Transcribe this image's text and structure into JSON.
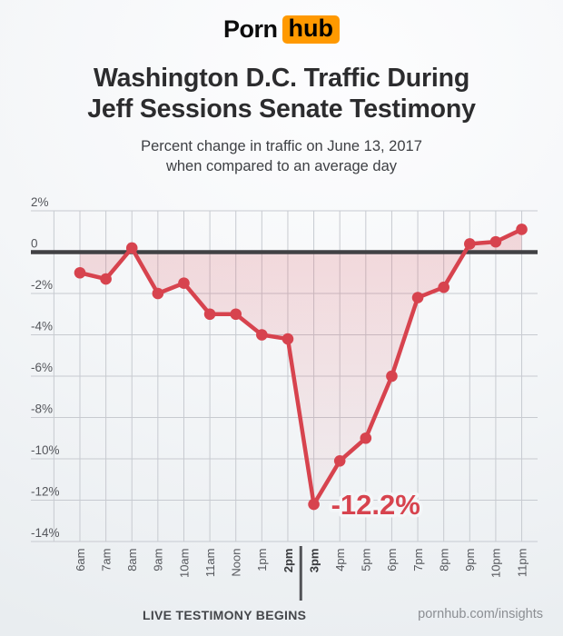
{
  "brand": {
    "logo_part1": "Porn",
    "logo_part2": "hub",
    "orange": "#ff9900"
  },
  "header": {
    "title_line1": "Washington D.C. Traffic During",
    "title_line2": "Jeff Sessions Senate Testimony",
    "subtitle_line1": "Percent change in traffic on June 13, 2017",
    "subtitle_line2": "when compared to an average day"
  },
  "chart_data": {
    "type": "line",
    "title": "Washington D.C. Traffic During Jeff Sessions Senate Testimony",
    "x_labels": [
      "6am",
      "7am",
      "8am",
      "9am",
      "10am",
      "11am",
      "Noon",
      "1pm",
      "2pm",
      "3pm",
      "4pm",
      "5pm",
      "6pm",
      "7pm",
      "8pm",
      "9pm",
      "10pm",
      "11pm"
    ],
    "values": [
      -1.0,
      -1.3,
      0.2,
      -2.0,
      -1.5,
      -3.0,
      -3.0,
      -4.0,
      -4.2,
      -12.2,
      -10.1,
      -9.0,
      -6.0,
      -2.2,
      -1.7,
      0.4,
      0.5,
      1.1
    ],
    "bold_x_labels": [
      "2pm",
      "3pm"
    ],
    "y_ticks": [
      {
        "label": "2%",
        "value": 2
      },
      {
        "label": "0",
        "value": 0
      },
      {
        "label": "-2%",
        "value": -2
      },
      {
        "label": "-4%",
        "value": -4
      },
      {
        "label": "-6%",
        "value": -6
      },
      {
        "label": "-8%",
        "value": -8
      },
      {
        "label": "-10%",
        "value": -10
      },
      {
        "label": "-12%",
        "value": -12
      },
      {
        "label": "-14%",
        "value": -14
      }
    ],
    "ylim": [
      -14,
      2
    ],
    "grid": true,
    "legend": "none",
    "annotation": {
      "text": "-12.2%",
      "x_label": "3pm",
      "value": -12.2
    },
    "event_marker": {
      "label": "LIVE TESTIMONY BEGINS",
      "between": [
        "2pm",
        "3pm"
      ]
    },
    "colors": {
      "line": "#d7434e",
      "fill_top": "rgba(215,67,78,0.20)",
      "fill_bottom": "rgba(215,67,78,0.02)",
      "zero_line": "#414144",
      "grid": "#c7cad0",
      "tick_text": "#54565b",
      "bold_tick_text": "#393a3d",
      "marker_line": "#515256",
      "marker_text": "#45474b",
      "annotation_halo": "#f4f6f8"
    }
  },
  "footer": {
    "credit": "pornhub.com/insights"
  }
}
